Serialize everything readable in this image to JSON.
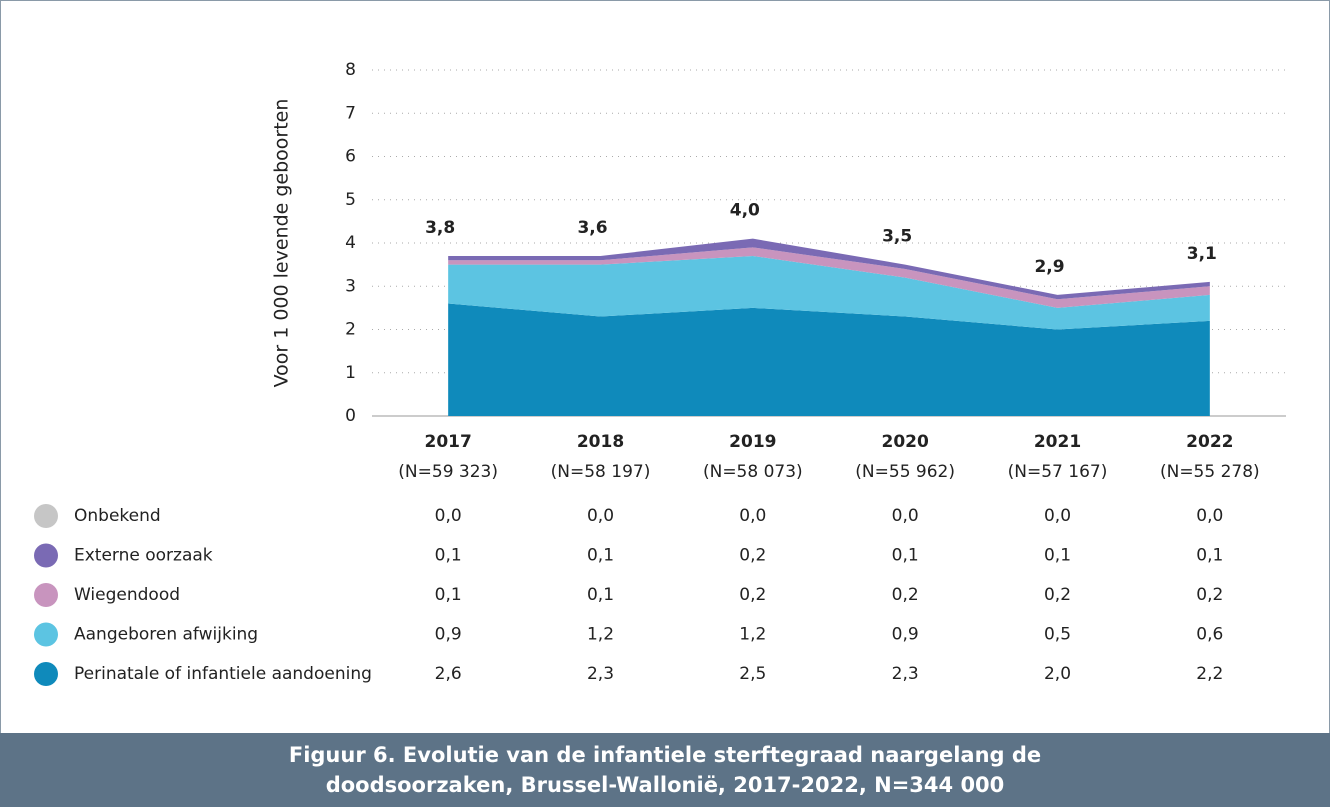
{
  "chart_data": {
    "type": "stacked_area",
    "title": "Figuur 6. Evolutie van de infantiele sterftegraad naargelang de doodsoorzaken, Brussel-Wallonië, 2017-2022, N=344 000",
    "y_label": "Voor 1 000 levende geboorten",
    "categories": [
      "2017",
      "2018",
      "2019",
      "2020",
      "2021",
      "2022"
    ],
    "category_notes": [
      "(N=59 323)",
      "(N=58 197)",
      "(N=58 073)",
      "(N=55 962)",
      "(N=57 167)",
      "(N=55 278)"
    ],
    "ylim": [
      0,
      8
    ],
    "yticks": [
      0,
      1,
      2,
      3,
      4,
      5,
      6,
      7,
      8
    ],
    "grid": true,
    "series": [
      {
        "name": "Onbekend",
        "color": "#c6c6c6",
        "values": [
          0,
          0,
          0,
          0,
          0,
          0
        ],
        "value_labels": [
          "0,0",
          "0,0",
          "0,0",
          "0,0",
          "0,0",
          "0,0"
        ]
      },
      {
        "name": "Externe oorzaak",
        "color": "#7a6ab4",
        "values": [
          0.1,
          0.1,
          0.2,
          0.1,
          0.1,
          0.1
        ],
        "value_labels": [
          "0,1",
          "0,1",
          "0,2",
          "0,1",
          "0,1",
          "0,1"
        ]
      },
      {
        "name": "Wiegendood",
        "color": "#c894be",
        "values": [
          0.1,
          0.1,
          0.2,
          0.2,
          0.2,
          0.2
        ],
        "value_labels": [
          "0,1",
          "0,1",
          "0,2",
          "0,2",
          "0,2",
          "0,2"
        ]
      },
      {
        "name": "Aangeboren afwijking",
        "color": "#5cc4e2",
        "values": [
          0.9,
          1.2,
          1.2,
          0.9,
          0.5,
          0.6
        ],
        "value_labels": [
          "0,9",
          "1,2",
          "1,2",
          "0,9",
          "0,5",
          "0,6"
        ]
      },
      {
        "name": "Perinatale of infantiele aandoening",
        "color": "#0f8abb",
        "values": [
          2.6,
          2.3,
          2.5,
          2.3,
          2.0,
          2.2
        ],
        "value_labels": [
          "2,6",
          "2,3",
          "2,5",
          "2,3",
          "2,0",
          "2,2"
        ]
      }
    ],
    "totals": {
      "values": [
        3.8,
        3.6,
        4.0,
        3.5,
        2.9,
        3.1
      ],
      "value_labels": [
        "3,8",
        "3,6",
        "4,0",
        "3,5",
        "2,9",
        "3,1"
      ]
    }
  }
}
